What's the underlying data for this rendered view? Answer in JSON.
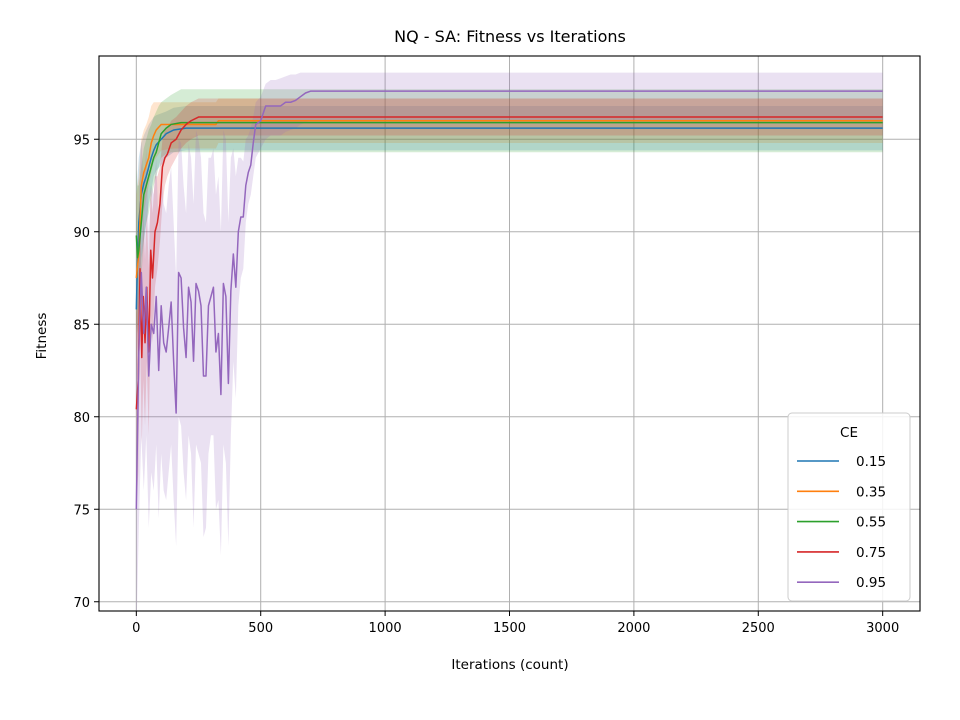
{
  "chart_data": {
    "type": "line",
    "title": "NQ - SA: Fitness vs Iterations",
    "xlabel": "Iterations (count)",
    "ylabel": "Fitness",
    "xlim": [
      -150,
      3150
    ],
    "ylim": [
      69.5,
      99.5
    ],
    "xticks": [
      0,
      500,
      1000,
      1500,
      2000,
      2500,
      3000
    ],
    "yticks": [
      70,
      75,
      80,
      85,
      90,
      95
    ],
    "grid": true,
    "legend": {
      "title": "CE",
      "placement": "lower right"
    },
    "series": [
      {
        "name": "0.15",
        "color": "#1f77b4",
        "x": [
          0,
          5,
          10,
          20,
          30,
          40,
          50,
          60,
          70,
          80,
          100,
          120,
          150,
          200,
          3000
        ],
        "y": [
          85.8,
          88.5,
          90.5,
          92.0,
          92.6,
          93.0,
          93.5,
          94.0,
          94.4,
          94.7,
          95.0,
          95.3,
          95.5,
          95.6,
          95.6
        ],
        "lower": [
          80.5,
          84.0,
          86.5,
          88.5,
          89.5,
          90.5,
          91.5,
          92.2,
          93.0,
          93.3,
          93.6,
          94.0,
          94.3,
          94.4,
          94.4
        ],
        "upper": [
          91.0,
          93.0,
          94.0,
          94.8,
          95.2,
          95.5,
          95.8,
          96.0,
          96.2,
          96.3,
          96.4,
          96.5,
          96.7,
          96.8,
          96.8
        ]
      },
      {
        "name": "0.35",
        "color": "#ff7f0e",
        "x": [
          0,
          10,
          20,
          30,
          40,
          50,
          60,
          70,
          80,
          100,
          150,
          200,
          250,
          320,
          330,
          3000
        ],
        "y": [
          87.5,
          88.8,
          92.5,
          93.2,
          93.6,
          94.0,
          94.8,
          95.2,
          95.5,
          95.8,
          95.8,
          95.8,
          95.8,
          95.8,
          96.0,
          96.0
        ],
        "lower": [
          82.5,
          85.5,
          90.0,
          91.0,
          91.8,
          92.5,
          93.2,
          93.8,
          94.0,
          94.4,
          94.5,
          94.5,
          94.5,
          94.5,
          94.8,
          94.8
        ],
        "upper": [
          92.0,
          93.0,
          95.0,
          95.5,
          95.8,
          96.2,
          96.8,
          97.0,
          97.0,
          97.0,
          97.0,
          97.0,
          97.0,
          97.0,
          97.2,
          97.2
        ]
      },
      {
        "name": "0.55",
        "color": "#2ca02c",
        "x": [
          0,
          5,
          10,
          20,
          30,
          40,
          50,
          60,
          70,
          80,
          90,
          100,
          120,
          140,
          180,
          3000
        ],
        "y": [
          89.8,
          88.6,
          89.0,
          90.5,
          92.0,
          92.5,
          93.0,
          93.5,
          94.0,
          94.3,
          94.8,
          95.3,
          95.6,
          95.8,
          95.9,
          95.9
        ],
        "lower": [
          85.0,
          84.5,
          85.5,
          87.5,
          89.5,
          90.5,
          91.0,
          91.8,
          92.5,
          93.0,
          93.5,
          94.0,
          94.2,
          94.3,
          94.3,
          94.3
        ],
        "upper": [
          93.5,
          92.5,
          92.5,
          93.5,
          94.5,
          95.0,
          95.5,
          95.8,
          96.2,
          96.5,
          96.8,
          97.0,
          97.2,
          97.4,
          97.7,
          97.7
        ]
      },
      {
        "name": "0.75",
        "color": "#d62728",
        "x": [
          0,
          8,
          15,
          22,
          28,
          35,
          42,
          50,
          58,
          65,
          75,
          85,
          95,
          105,
          115,
          125,
          140,
          160,
          180,
          200,
          220,
          250,
          3000
        ],
        "y": [
          80.4,
          82.0,
          88.0,
          83.2,
          86.5,
          84.0,
          87.0,
          83.5,
          89.0,
          87.5,
          90.0,
          90.5,
          91.5,
          93.5,
          94.0,
          94.2,
          94.8,
          95.0,
          95.5,
          95.8,
          96.0,
          96.2,
          96.2
        ],
        "lower": [
          75.0,
          77.0,
          84.5,
          78.5,
          82.0,
          79.5,
          83.0,
          79.0,
          85.5,
          84.0,
          87.0,
          88.0,
          89.5,
          91.5,
          92.5,
          93.0,
          93.5,
          94.0,
          94.5,
          94.8,
          95.0,
          95.2,
          95.2
        ],
        "upper": [
          85.5,
          87.0,
          91.5,
          88.0,
          91.0,
          88.5,
          91.0,
          88.0,
          92.5,
          91.0,
          93.0,
          93.0,
          93.5,
          95.0,
          95.5,
          95.6,
          96.0,
          96.2,
          96.5,
          96.8,
          97.0,
          97.2,
          97.2
        ]
      },
      {
        "name": "0.95",
        "color": "#9467bd",
        "x": [
          0,
          10,
          20,
          30,
          40,
          50,
          60,
          70,
          80,
          90,
          100,
          110,
          120,
          130,
          140,
          150,
          160,
          170,
          180,
          190,
          200,
          210,
          220,
          230,
          240,
          250,
          260,
          270,
          280,
          290,
          300,
          310,
          320,
          330,
          340,
          350,
          360,
          370,
          380,
          390,
          400,
          410,
          420,
          430,
          440,
          450,
          460,
          470,
          480,
          500,
          520,
          540,
          560,
          580,
          600,
          620,
          640,
          660,
          680,
          700,
          3000
        ],
        "y": [
          75.0,
          83.5,
          87.8,
          84.5,
          87.0,
          82.2,
          85.0,
          84.5,
          86.5,
          82.5,
          86.0,
          84.0,
          83.5,
          84.8,
          86.2,
          83.0,
          80.2,
          87.8,
          87.5,
          84.8,
          83.2,
          87.0,
          86.2,
          83.0,
          87.2,
          86.8,
          86.0,
          82.2,
          82.2,
          86.0,
          86.5,
          87.0,
          83.5,
          84.5,
          81.2,
          87.2,
          86.5,
          81.8,
          86.8,
          88.8,
          87.0,
          90.0,
          90.8,
          90.8,
          92.5,
          93.2,
          93.6,
          94.8,
          95.8,
          96.0,
          96.8,
          96.8,
          96.8,
          96.8,
          97.0,
          97.0,
          97.1,
          97.3,
          97.5,
          97.6,
          97.6
        ],
        "lower": [
          68.0,
          74.0,
          79.0,
          76.0,
          79.0,
          74.0,
          77.0,
          76.0,
          78.5,
          74.5,
          78.0,
          76.0,
          75.5,
          77.0,
          78.5,
          75.5,
          73.0,
          80.0,
          79.5,
          77.0,
          75.5,
          79.0,
          78.0,
          74.0,
          78.5,
          78.0,
          77.5,
          73.5,
          74.0,
          78.0,
          79.0,
          79.0,
          75.0,
          75.5,
          72.5,
          78.5,
          77.5,
          73.0,
          79.0,
          83.0,
          81.0,
          86.0,
          87.5,
          88.0,
          90.5,
          91.5,
          92.0,
          93.0,
          94.0,
          94.5,
          95.0,
          95.2,
          95.2,
          95.2,
          95.4,
          95.5,
          95.6,
          95.8,
          95.9,
          96.0,
          96.0
        ],
        "upper": [
          83.5,
          91.5,
          95.0,
          92.5,
          94.5,
          90.0,
          92.5,
          92.0,
          94.0,
          90.0,
          93.5,
          91.5,
          91.0,
          92.5,
          93.5,
          90.5,
          87.5,
          95.0,
          94.8,
          92.5,
          91.0,
          94.8,
          94.0,
          91.5,
          95.5,
          95.0,
          94.0,
          91.0,
          90.5,
          94.0,
          94.0,
          94.5,
          92.0,
          93.0,
          90.0,
          95.5,
          95.0,
          90.5,
          94.0,
          94.5,
          93.0,
          94.0,
          94.0,
          93.8,
          95.0,
          95.2,
          95.6,
          96.2,
          97.0,
          97.3,
          98.0,
          98.2,
          98.2,
          98.3,
          98.4,
          98.5,
          98.5,
          98.6,
          98.6,
          98.6,
          98.6
        ]
      }
    ]
  }
}
